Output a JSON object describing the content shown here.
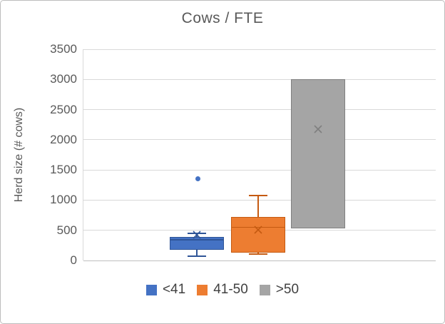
{
  "window": {
    "background": "#ffffff",
    "border_color": "#bdbdbd"
  },
  "chart_data": {
    "type": "boxplot",
    "title": "Cows / FTE",
    "xlabel": "",
    "ylabel": "Herd size (# cows)",
    "ylim": [
      0,
      3500
    ],
    "yticks": [
      0,
      500,
      1000,
      1500,
      2000,
      2500,
      3000,
      3500
    ],
    "grid": true,
    "gridline_color": "#d9d9d9",
    "axis_line_color": "#bfbfbf",
    "axis_text_color": "#595959",
    "legend_text_color": "#404040",
    "legend_position": "bottom",
    "series": [
      {
        "name": "<41",
        "fill": "#4472c4",
        "stroke": "#2f5597",
        "whisker_low": 70,
        "q1": 180,
        "median": 340,
        "q3": 395,
        "whisker_high": 450,
        "mean": 430,
        "outliers": [
          1350
        ]
      },
      {
        "name": "41-50",
        "fill": "#ed7d31",
        "stroke": "#c55a11",
        "whisker_low": 110,
        "q1": 135,
        "median": 550,
        "q3": 725,
        "whisker_high": 1080,
        "mean": 510,
        "outliers": []
      },
      {
        "name": ">50",
        "fill": "#a5a5a5",
        "stroke": "#7f7f7f",
        "whisker_low": 530,
        "q1": 530,
        "median": null,
        "q3": 3000,
        "whisker_high": 3000,
        "mean": 2180,
        "outliers": []
      }
    ]
  }
}
